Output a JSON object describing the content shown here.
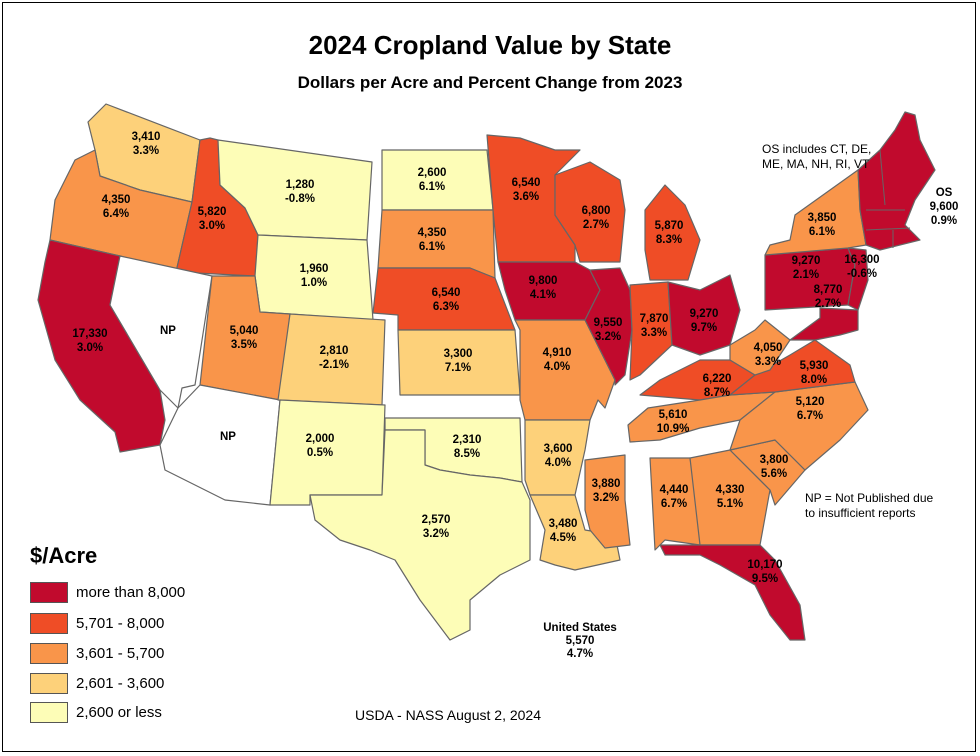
{
  "title": "2024 Cropland Value by State",
  "subtitle": "Dollars per Acre and Percent Change from 2023",
  "colors": {
    "c1": "#fdfdb7",
    "c2": "#fdd17a",
    "c3": "#f9954a",
    "c4": "#ef4d26",
    "c5": "#c10a2d",
    "np": "#ffffff"
  },
  "legend": {
    "title": "$/Acre",
    "items": [
      {
        "label": "more than 8,000",
        "color": "#c10a2d"
      },
      {
        "label": "5,701 - 8,000",
        "color": "#ef4d26"
      },
      {
        "label": "3,601 - 5,700",
        "color": "#f9954a"
      },
      {
        "label": "2,601 - 3,600",
        "color": "#fdd17a"
      },
      {
        "label": "2,600 or less",
        "color": "#fdfdb7"
      }
    ]
  },
  "notes": {
    "os_includes": "OS includes CT, DE, ME, MA, NH, RI, VT",
    "np_note": "NP = Not Published due to insufficient reports"
  },
  "united_states": {
    "label": "United States",
    "value": "5,570",
    "change": "4.7%"
  },
  "source": "USDA - NASS August 2, 2024",
  "states": [
    {
      "id": "WA",
      "value": "3,410",
      "change": "3.3%",
      "cls": "c2"
    },
    {
      "id": "OR",
      "value": "4,350",
      "change": "6.4%",
      "cls": "c3"
    },
    {
      "id": "CA",
      "value": "17,330",
      "change": "3.0%",
      "cls": "c5"
    },
    {
      "id": "ID",
      "value": "5,820",
      "change": "3.0%",
      "cls": "c4"
    },
    {
      "id": "NV",
      "value": "NP",
      "change": "",
      "cls": "np"
    },
    {
      "id": "MT",
      "value": "1,280",
      "change": "-0.8%",
      "cls": "c1"
    },
    {
      "id": "WY",
      "value": "1,960",
      "change": "1.0%",
      "cls": "c1"
    },
    {
      "id": "UT",
      "value": "5,040",
      "change": "3.5%",
      "cls": "c3"
    },
    {
      "id": "AZ",
      "value": "NP",
      "change": "",
      "cls": "np"
    },
    {
      "id": "CO",
      "value": "2,810",
      "change": "-2.1%",
      "cls": "c2"
    },
    {
      "id": "NM",
      "value": "2,000",
      "change": "0.5%",
      "cls": "c1"
    },
    {
      "id": "ND",
      "value": "2,600",
      "change": "6.1%",
      "cls": "c1"
    },
    {
      "id": "SD",
      "value": "4,350",
      "change": "6.1%",
      "cls": "c3"
    },
    {
      "id": "NE",
      "value": "6,540",
      "change": "6.3%",
      "cls": "c4"
    },
    {
      "id": "KS",
      "value": "3,300",
      "change": "7.1%",
      "cls": "c2"
    },
    {
      "id": "OK",
      "value": "2,310",
      "change": "8.5%",
      "cls": "c1"
    },
    {
      "id": "TX",
      "value": "2,570",
      "change": "3.2%",
      "cls": "c1"
    },
    {
      "id": "MN",
      "value": "6,540",
      "change": "3.6%",
      "cls": "c4"
    },
    {
      "id": "IA",
      "value": "9,800",
      "change": "4.1%",
      "cls": "c5"
    },
    {
      "id": "MO",
      "value": "4,910",
      "change": "4.0%",
      "cls": "c3"
    },
    {
      "id": "AR",
      "value": "3,600",
      "change": "4.0%",
      "cls": "c2"
    },
    {
      "id": "LA",
      "value": "3,480",
      "change": "4.5%",
      "cls": "c2"
    },
    {
      "id": "WI",
      "value": "6,800",
      "change": "2.7%",
      "cls": "c4"
    },
    {
      "id": "IL",
      "value": "9,550",
      "change": "3.2%",
      "cls": "c5"
    },
    {
      "id": "MI",
      "value": "5,870",
      "change": "8.3%",
      "cls": "c4"
    },
    {
      "id": "IN",
      "value": "7,870",
      "change": "3.3%",
      "cls": "c4"
    },
    {
      "id": "OH",
      "value": "9,270",
      "change": "9.7%",
      "cls": "c5"
    },
    {
      "id": "KY",
      "value": "6,220",
      "change": "8.7%",
      "cls": "c4"
    },
    {
      "id": "TN",
      "value": "5,610",
      "change": "10.9%",
      "cls": "c3"
    },
    {
      "id": "MS",
      "value": "3,880",
      "change": "3.2%",
      "cls": "c3"
    },
    {
      "id": "AL",
      "value": "4,440",
      "change": "6.7%",
      "cls": "c3"
    },
    {
      "id": "GA",
      "value": "4,330",
      "change": "5.1%",
      "cls": "c3"
    },
    {
      "id": "FL",
      "value": "10,170",
      "change": "9.5%",
      "cls": "c5"
    },
    {
      "id": "SC",
      "value": "3,800",
      "change": "5.6%",
      "cls": "c3"
    },
    {
      "id": "NC",
      "value": "5,120",
      "change": "6.7%",
      "cls": "c3"
    },
    {
      "id": "VA",
      "value": "5,930",
      "change": "8.0%",
      "cls": "c4"
    },
    {
      "id": "WV",
      "value": "4,050",
      "change": "3.3%",
      "cls": "c3"
    },
    {
      "id": "PA",
      "value": "9,270",
      "change": "2.1%",
      "cls": "c5"
    },
    {
      "id": "NY",
      "value": "3,850",
      "change": "6.1%",
      "cls": "c3"
    },
    {
      "id": "NJ",
      "value": "16,300",
      "change": "-0.6%",
      "cls": "c5"
    },
    {
      "id": "MD",
      "value": "8,770",
      "change": "2.7%",
      "cls": "c5"
    },
    {
      "id": "OS",
      "value": "9,600",
      "change": "0.9%",
      "cls": "c5",
      "name": "OS"
    }
  ]
}
